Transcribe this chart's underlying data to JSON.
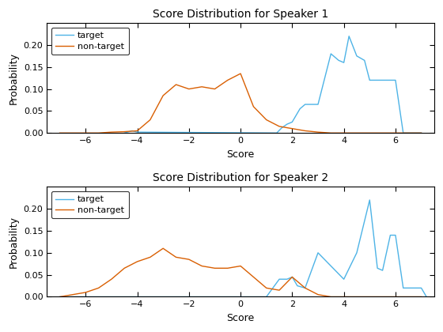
{
  "title1": "Score Distribution for Speaker 1",
  "title2": "Score Distribution for Speaker 2",
  "xlabel": "Score",
  "ylabel": "Probability",
  "target_color": "#4db3e6",
  "nontarget_color": "#d95f02",
  "legend_labels": [
    "target",
    "non-target"
  ],
  "sp1_target_x": [
    -4.5,
    -4.2,
    -4.0,
    1.4,
    1.6,
    1.8,
    2.0,
    2.3,
    2.5,
    3.0,
    3.5,
    3.8,
    4.0,
    4.2,
    4.5,
    4.8,
    5.0,
    5.5,
    6.0,
    6.3,
    6.5,
    6.7,
    7.0
  ],
  "sp1_target_y": [
    0.0,
    0.005,
    0.002,
    0.0,
    0.012,
    0.02,
    0.025,
    0.055,
    0.065,
    0.065,
    0.18,
    0.165,
    0.16,
    0.22,
    0.175,
    0.165,
    0.12,
    0.12,
    0.12,
    0.0,
    0.0,
    0.0,
    0.0
  ],
  "sp1_nontarget_x": [
    -7.0,
    -5.5,
    -5.0,
    -4.5,
    -4.0,
    -3.5,
    -3.0,
    -2.5,
    -2.0,
    -1.5,
    -1.0,
    -0.5,
    0.0,
    0.5,
    1.0,
    1.5,
    2.0,
    2.5,
    3.0,
    3.5,
    7.0
  ],
  "sp1_nontarget_y": [
    0.0,
    0.0,
    0.002,
    0.003,
    0.005,
    0.03,
    0.085,
    0.11,
    0.1,
    0.105,
    0.1,
    0.12,
    0.135,
    0.06,
    0.03,
    0.015,
    0.01,
    0.005,
    0.002,
    0.0,
    0.0
  ],
  "sp2_target_x": [
    -7.0,
    1.0,
    1.5,
    1.8,
    2.0,
    2.2,
    2.5,
    3.0,
    3.5,
    4.0,
    4.5,
    5.0,
    5.3,
    5.5,
    5.8,
    6.0,
    6.3,
    6.5,
    7.0,
    7.2
  ],
  "sp2_target_y": [
    0.0,
    0.0,
    0.04,
    0.04,
    0.045,
    0.025,
    0.02,
    0.1,
    0.07,
    0.04,
    0.1,
    0.22,
    0.065,
    0.06,
    0.14,
    0.14,
    0.02,
    0.02,
    0.02,
    0.0
  ],
  "sp2_nontarget_x": [
    -7.0,
    -6.5,
    -6.0,
    -5.5,
    -5.0,
    -4.5,
    -4.0,
    -3.5,
    -3.0,
    -2.5,
    -2.0,
    -1.5,
    -1.0,
    -0.5,
    0.0,
    0.5,
    1.0,
    1.5,
    2.0,
    2.5,
    3.0,
    3.5,
    7.0
  ],
  "sp2_nontarget_y": [
    0.0,
    0.005,
    0.01,
    0.02,
    0.04,
    0.065,
    0.08,
    0.09,
    0.11,
    0.09,
    0.085,
    0.07,
    0.065,
    0.065,
    0.07,
    0.045,
    0.02,
    0.015,
    0.045,
    0.02,
    0.005,
    0.0,
    0.0
  ],
  "xlim": [
    -7.5,
    7.5
  ],
  "ylim": [
    0,
    0.25
  ],
  "xticks": [
    -6,
    -4,
    -2,
    0,
    2,
    4,
    6
  ],
  "yticks": [
    0,
    0.05,
    0.1,
    0.15,
    0.2
  ]
}
